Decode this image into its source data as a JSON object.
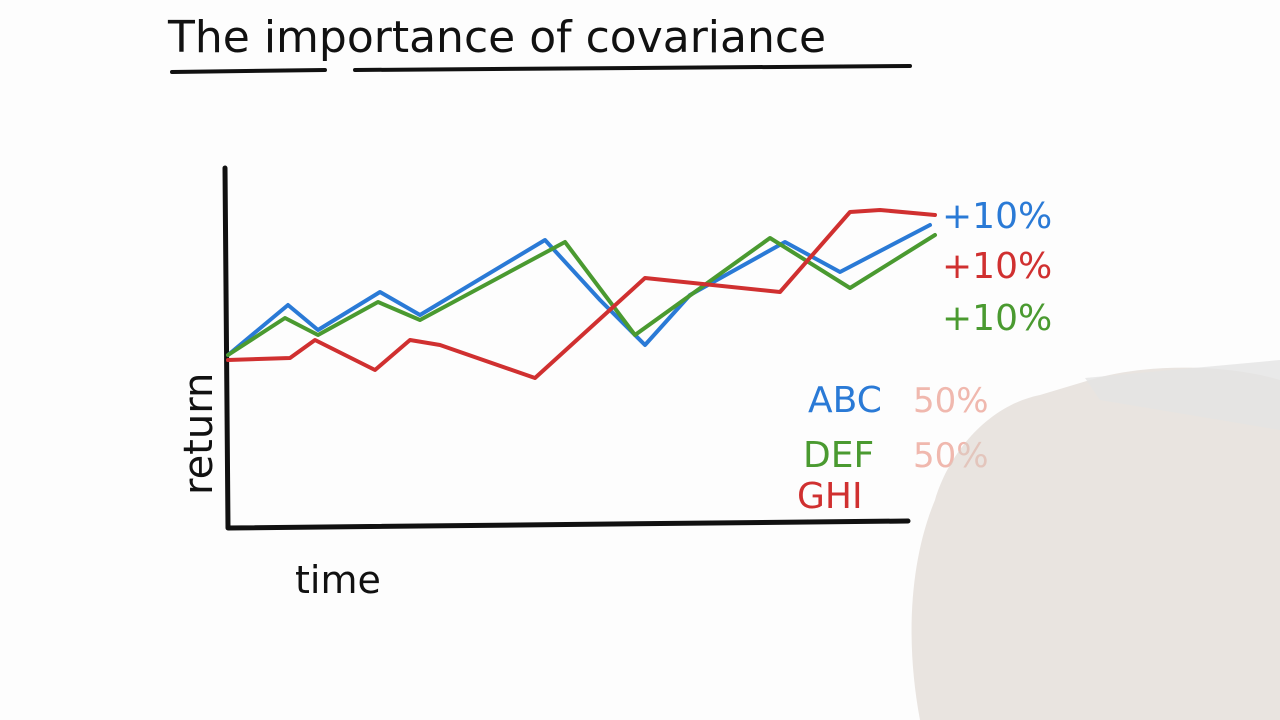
{
  "title": "The importance of covariance",
  "axes": {
    "y_label": "return",
    "x_label": "time"
  },
  "end_labels": [
    {
      "text": "+10%",
      "color": "#2a7ad6"
    },
    {
      "text": "+10%",
      "color": "#d03030"
    },
    {
      "text": "+10%",
      "color": "#4a9a30"
    }
  ],
  "legend": [
    {
      "name": "ABC",
      "color": "#2a7ad6",
      "weight": "50%"
    },
    {
      "name": "DEF",
      "color": "#4a9a30",
      "weight": "50%"
    },
    {
      "name": "GHI",
      "color": "#d03030"
    }
  ]
}
